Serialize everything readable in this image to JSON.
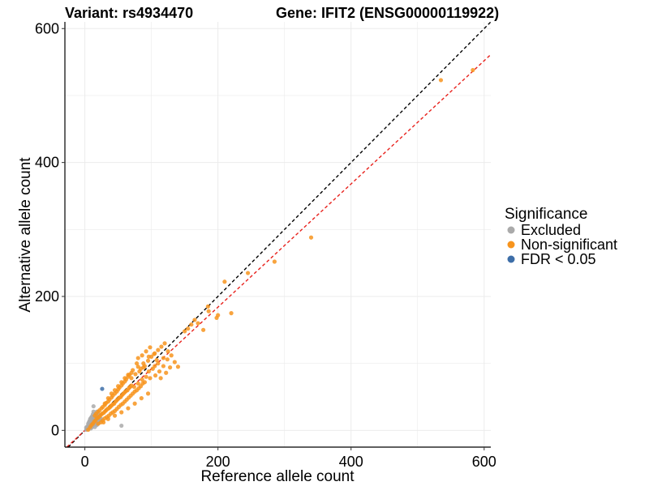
{
  "chart_data": {
    "type": "scatter",
    "title_left": "Variant: rs4934470",
    "title_right": "Gene: IFIT2 (ENSG00000119922)",
    "xlabel": "Reference allele count",
    "ylabel": "Alternative allele count",
    "xlim": [
      -30,
      610
    ],
    "ylim": [
      -25,
      610
    ],
    "x_ticks": [
      0,
      200,
      400,
      600
    ],
    "y_ticks": [
      0,
      200,
      400,
      600
    ],
    "x_tick_labels": [
      "0",
      "200",
      "400",
      "600"
    ],
    "y_tick_labels": [
      "0",
      "200",
      "400",
      "600"
    ],
    "grid": true,
    "legend": {
      "title": "Significance",
      "position": "right",
      "entries": [
        {
          "label": "Excluded",
          "color": "#aaaaaa"
        },
        {
          "label": "Non-significant",
          "color": "#f7941d"
        },
        {
          "label": "FDR < 0.05",
          "color": "#3d6ea8"
        }
      ]
    },
    "reference_lines": [
      {
        "name": "identity",
        "slope": 1.0,
        "intercept": 0,
        "color": "#000000",
        "style": "dashed"
      },
      {
        "name": "fit",
        "slope": 0.92,
        "intercept": 0,
        "color": "#e8211c",
        "style": "dashed"
      }
    ],
    "series": [
      {
        "name": "Excluded",
        "color": "#aaaaaa",
        "points": [
          [
            2,
            1
          ],
          [
            3,
            2
          ],
          [
            4,
            3
          ],
          [
            5,
            4
          ],
          [
            6,
            5
          ],
          [
            4,
            6
          ],
          [
            7,
            6
          ],
          [
            8,
            7
          ],
          [
            9,
            8
          ],
          [
            10,
            9
          ],
          [
            11,
            10
          ],
          [
            12,
            11
          ],
          [
            6,
            9
          ],
          [
            5,
            10
          ],
          [
            8,
            12
          ],
          [
            10,
            14
          ],
          [
            12,
            16
          ],
          [
            14,
            15
          ],
          [
            9,
            3
          ],
          [
            11,
            5
          ],
          [
            13,
            8
          ],
          [
            15,
            10
          ],
          [
            16,
            12
          ],
          [
            18,
            14
          ],
          [
            20,
            16
          ],
          [
            22,
            18
          ],
          [
            14,
            18
          ],
          [
            16,
            20
          ],
          [
            18,
            22
          ],
          [
            20,
            25
          ],
          [
            7,
            14
          ],
          [
            10,
            20
          ],
          [
            12,
            24
          ],
          [
            13,
            28
          ],
          [
            8,
            17
          ],
          [
            15,
            5
          ],
          [
            18,
            8
          ],
          [
            20,
            10
          ],
          [
            3,
            5
          ],
          [
            5,
            2
          ],
          [
            2,
            4
          ],
          [
            17,
            9
          ],
          [
            19,
            11
          ],
          [
            21,
            13
          ],
          [
            23,
            15
          ],
          [
            25,
            17
          ],
          [
            9,
            18
          ],
          [
            11,
            21
          ],
          [
            6,
            12
          ],
          [
            16,
            24
          ],
          [
            18,
            28
          ],
          [
            13,
            36
          ],
          [
            55,
            7
          ]
        ]
      },
      {
        "name": "Non-significant",
        "color": "#f7941d",
        "points": [
          [
            5,
            1
          ],
          [
            8,
            5
          ],
          [
            10,
            8
          ],
          [
            12,
            10
          ],
          [
            14,
            13
          ],
          [
            16,
            15
          ],
          [
            18,
            18
          ],
          [
            20,
            19
          ],
          [
            22,
            21
          ],
          [
            24,
            23
          ],
          [
            26,
            25
          ],
          [
            28,
            26
          ],
          [
            30,
            28
          ],
          [
            32,
            30
          ],
          [
            34,
            32
          ],
          [
            36,
            33
          ],
          [
            38,
            35
          ],
          [
            40,
            37
          ],
          [
            42,
            39
          ],
          [
            44,
            40
          ],
          [
            46,
            43
          ],
          [
            48,
            45
          ],
          [
            50,
            47
          ],
          [
            52,
            49
          ],
          [
            54,
            50
          ],
          [
            56,
            53
          ],
          [
            58,
            55
          ],
          [
            60,
            57
          ],
          [
            62,
            59
          ],
          [
            64,
            60
          ],
          [
            66,
            63
          ],
          [
            68,
            65
          ],
          [
            70,
            67
          ],
          [
            15,
            22
          ],
          [
            17,
            25
          ],
          [
            20,
            28
          ],
          [
            22,
            30
          ],
          [
            25,
            33
          ],
          [
            27,
            35
          ],
          [
            30,
            38
          ],
          [
            32,
            41
          ],
          [
            35,
            43
          ],
          [
            37,
            46
          ],
          [
            40,
            49
          ],
          [
            42,
            52
          ],
          [
            45,
            55
          ],
          [
            48,
            58
          ],
          [
            50,
            61
          ],
          [
            52,
            64
          ],
          [
            55,
            67
          ],
          [
            57,
            70
          ],
          [
            60,
            73
          ],
          [
            62,
            76
          ],
          [
            65,
            80
          ],
          [
            67,
            83
          ],
          [
            70,
            86
          ],
          [
            24,
            12
          ],
          [
            27,
            15
          ],
          [
            30,
            18
          ],
          [
            33,
            20
          ],
          [
            36,
            22
          ],
          [
            39,
            25
          ],
          [
            42,
            27
          ],
          [
            45,
            29
          ],
          [
            48,
            32
          ],
          [
            51,
            35
          ],
          [
            54,
            38
          ],
          [
            57,
            40
          ],
          [
            60,
            43
          ],
          [
            63,
            46
          ],
          [
            66,
            49
          ],
          [
            69,
            52
          ],
          [
            72,
            55
          ],
          [
            75,
            58
          ],
          [
            78,
            60
          ],
          [
            81,
            63
          ],
          [
            84,
            66
          ],
          [
            87,
            70
          ],
          [
            90,
            72
          ],
          [
            20,
            10
          ],
          [
            28,
            12
          ],
          [
            35,
            17
          ],
          [
            45,
            22
          ],
          [
            55,
            27
          ],
          [
            65,
            33
          ],
          [
            75,
            40
          ],
          [
            85,
            48
          ],
          [
            95,
            55
          ],
          [
            30,
            40
          ],
          [
            35,
            48
          ],
          [
            40,
            55
          ],
          [
            45,
            60
          ],
          [
            50,
            66
          ],
          [
            55,
            72
          ],
          [
            60,
            78
          ],
          [
            65,
            83
          ],
          [
            72,
            90
          ],
          [
            80,
            95
          ],
          [
            88,
            100
          ],
          [
            95,
            104
          ],
          [
            100,
            110
          ],
          [
            105,
            115
          ],
          [
            110,
            120
          ],
          [
            115,
            125
          ],
          [
            120,
            130
          ],
          [
            125,
            118
          ],
          [
            118,
            108
          ],
          [
            110,
            100
          ],
          [
            102,
            92
          ],
          [
            96,
            88
          ],
          [
            92,
            80
          ],
          [
            86,
            76
          ],
          [
            80,
            70
          ],
          [
            74,
            65
          ],
          [
            105,
            96
          ],
          [
            112,
            88
          ],
          [
            118,
            96
          ],
          [
            124,
            106
          ],
          [
            130,
            112
          ],
          [
            98,
            78
          ],
          [
            106,
            82
          ],
          [
            114,
            78
          ],
          [
            122,
            86
          ],
          [
            128,
            94
          ],
          [
            135,
            102
          ],
          [
            140,
            95
          ],
          [
            80,
            108
          ],
          [
            86,
            112
          ],
          [
            92,
            118
          ],
          [
            98,
            124
          ],
          [
            104,
            114
          ],
          [
            108,
            105
          ],
          [
            78,
            100
          ],
          [
            84,
            92
          ],
          [
            90,
            96
          ],
          [
            96,
            110
          ],
          [
            70,
            78
          ],
          [
            76,
            84
          ],
          [
            82,
            88
          ],
          [
            88,
            94
          ],
          [
            150,
            148
          ],
          [
            155,
            152
          ],
          [
            160,
            158
          ],
          [
            165,
            165
          ],
          [
            170,
            160
          ],
          [
            178,
            150
          ],
          [
            186,
            178
          ],
          [
            185,
            185
          ],
          [
            198,
            168
          ],
          [
            200,
            172
          ],
          [
            210,
            222
          ],
          [
            220,
            175
          ],
          [
            245,
            235
          ],
          [
            285,
            252
          ],
          [
            340,
            288
          ],
          [
            535,
            523
          ],
          [
            583,
            538
          ]
        ]
      },
      {
        "name": "FDR < 0.05",
        "color": "#3d6ea8",
        "points": [
          [
            26,
            62
          ]
        ]
      }
    ]
  }
}
